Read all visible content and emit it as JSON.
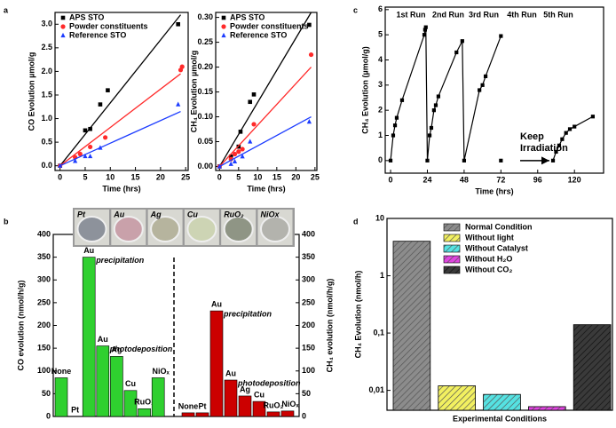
{
  "chart_data": [
    {
      "type": "scatter",
      "panel": "a",
      "xlabel": "Time (hrs)",
      "ylabel": "CO Evolution µmol/g",
      "xlim": [
        -1,
        25.5
      ],
      "xticks": [
        0,
        5,
        10,
        15,
        20,
        25
      ],
      "ylim": [
        -0.1,
        3.25
      ],
      "yticks": [
        {
          "value": 0,
          "label": "0.0"
        },
        {
          "value": 0.5,
          "label": "0.5"
        },
        {
          "value": 1,
          "label": "1.0"
        },
        {
          "value": 1.5,
          "label": "1.5"
        },
        {
          "value": 2,
          "label": "2.0"
        },
        {
          "value": 2.5,
          "label": "2.5"
        },
        {
          "value": 3,
          "label": "3.0"
        }
      ],
      "legend": "upper left",
      "series": [
        {
          "name": "APS STO",
          "color": "#000000",
          "marker": "square",
          "x": [
            0,
            5,
            6,
            8,
            9.5,
            23.5
          ],
          "values": [
            0,
            0.75,
            0.78,
            1.3,
            1.6,
            3.0
          ],
          "fit": {
            "x": [
              0,
              24
            ],
            "y": [
              0,
              3.2
            ]
          }
        },
        {
          "name": "Powder constituents",
          "color": "#ff2a2a",
          "marker": "circle",
          "x": [
            0,
            3,
            4,
            6,
            9,
            24,
            24.3
          ],
          "values": [
            0,
            0.18,
            0.25,
            0.4,
            0.6,
            2.03,
            2.1
          ],
          "fit": {
            "x": [
              0,
              24
            ],
            "y": [
              0,
              1.95
            ]
          }
        },
        {
          "name": "Reference STO",
          "color": "#1c3cff",
          "marker": "triangle",
          "x": [
            0,
            3,
            5,
            6,
            8,
            23.5
          ],
          "values": [
            0,
            0.1,
            0.2,
            0.2,
            0.38,
            1.3
          ],
          "fit": {
            "x": [
              0,
              24
            ],
            "y": [
              0,
              1.15
            ]
          }
        }
      ]
    },
    {
      "type": "scatter",
      "xlabel": "Time (hrs)",
      "ylabel": "CH₄ Evolution µmol/g",
      "xlim": [
        -1,
        25.5
      ],
      "xticks": [
        0,
        5,
        10,
        15,
        20,
        25
      ],
      "ylim": [
        -0.008,
        0.31
      ],
      "yticks": [
        {
          "value": 0,
          "label": "0.00"
        },
        {
          "value": 0.05,
          "label": "0.05"
        },
        {
          "value": 0.1,
          "label": "0.10"
        },
        {
          "value": 0.15,
          "label": "0.15"
        },
        {
          "value": 0.2,
          "label": "0.20"
        },
        {
          "value": 0.25,
          "label": "0.25"
        },
        {
          "value": 0.3,
          "label": "0.30"
        }
      ],
      "legend": "upper left",
      "series": [
        {
          "name": "APS STO",
          "color": "#000000",
          "marker": "square",
          "x": [
            0,
            3,
            5,
            5.5,
            8,
            9,
            23.5
          ],
          "values": [
            0,
            0.02,
            0.04,
            0.07,
            0.13,
            0.145,
            0.285
          ],
          "fit": {
            "x": [
              0,
              24
            ],
            "y": [
              0,
              0.31
            ]
          }
        },
        {
          "name": "Powder constituents",
          "color": "#ff2a2a",
          "marker": "circle",
          "x": [
            0,
            3,
            4,
            5,
            6,
            9,
            24
          ],
          "values": [
            0,
            0.015,
            0.025,
            0.03,
            0.035,
            0.085,
            0.225
          ],
          "fit": {
            "x": [
              0,
              24
            ],
            "y": [
              0,
              0.2
            ]
          }
        },
        {
          "name": "Reference STO",
          "color": "#1c3cff",
          "marker": "triangle",
          "x": [
            0,
            3,
            4,
            6,
            8,
            23.5
          ],
          "values": [
            0,
            0.005,
            0.01,
            0.02,
            0.05,
            0.09
          ],
          "fit": {
            "x": [
              0,
              24
            ],
            "y": [
              0,
              0.1
            ]
          }
        }
      ]
    },
    {
      "type": "bar",
      "panel": "b",
      "ylabel": "CO evolution (nmol/h/g)",
      "y2label": "CH₄ evolution (nmol/h/g)",
      "ylim": [
        0,
        400
      ],
      "yticks": [
        0,
        50,
        100,
        150,
        200,
        250,
        300,
        350,
        400
      ],
      "y2lim": [
        0,
        400
      ],
      "y2ticks": [
        0,
        50,
        100,
        150,
        200,
        250,
        300,
        350,
        400
      ],
      "categories": [
        "None",
        "Pt",
        "Au",
        "Au",
        "Ag",
        "Cu",
        "RuO₂",
        "NiOₓ"
      ],
      "annotations": [
        "precipitation",
        "photodeposition"
      ],
      "photos": [
        "Pt",
        "Au",
        "Ag",
        "Cu",
        "RuO₂",
        "NiOx"
      ],
      "series": [
        {
          "color": "#2fd02f",
          "values": [
            85,
            0,
            350,
            155,
            132,
            57,
            17,
            85
          ]
        },
        {
          "color": "#cc0000",
          "values": [
            8,
            8,
            232,
            80,
            45,
            33,
            10,
            12
          ],
          "axis": "y2"
        }
      ]
    },
    {
      "type": "line",
      "panel": "c",
      "xlabel": "Time (hrs)",
      "ylabel": "CH₄ Evolution (µmol/g)",
      "xlim": [
        -3.5,
        139
      ],
      "xticks": [
        0,
        24,
        48,
        72,
        96,
        120
      ],
      "ylim": [
        -0.5,
        6.1
      ],
      "yticks": [
        0,
        1,
        2,
        3,
        4,
        5,
        6
      ],
      "color": "#000000",
      "annotations": [
        "1st Run",
        "2nd Run",
        "3rd Run",
        "4th Run",
        "5th Run",
        "Keep Irradiation"
      ],
      "x": [
        0,
        1.7,
        2.9,
        4.0,
        7.5,
        22,
        22.5,
        23,
        24,
        25.5,
        26.6,
        28.3,
        29.5,
        31.2,
        43,
        46.8,
        48,
        58,
        60,
        62,
        72,
        null,
        72,
        null,
        106,
        108,
        110,
        112,
        114.5,
        117,
        120,
        132
      ],
      "values": [
        0,
        1.0,
        1.4,
        1.7,
        2.4,
        5.0,
        5.2,
        5.3,
        0,
        1.0,
        1.3,
        2.0,
        2.2,
        2.55,
        4.3,
        4.75,
        0,
        2.8,
        3.0,
        3.35,
        4.95,
        null,
        0,
        null,
        0,
        0.35,
        0.6,
        0.85,
        1.1,
        1.25,
        1.35,
        1.75
      ]
    },
    {
      "type": "bar",
      "panel": "d",
      "log": true,
      "xlabel": "Experimental Conditions",
      "ylabel": "CH₄ Evolution (nmol/h)",
      "ylim": [
        0.0045,
        10
      ],
      "yticks": [
        {
          "value": 0.01,
          "label": "0,01"
        },
        {
          "value": 0.1,
          "label": "0,1"
        },
        1,
        10
      ],
      "legend": "upper right",
      "categories": [
        "Normal Condition",
        "Without light",
        "Without Catalyst",
        "Without H₂O",
        "Without CO₂"
      ],
      "colors": [
        "#8c8c8c",
        "#f2f060",
        "#55e2e2",
        "#e045e0",
        "#3a3a3a"
      ],
      "values": [
        4.0,
        0.012,
        0.0085,
        0.0052,
        0.14
      ]
    }
  ]
}
